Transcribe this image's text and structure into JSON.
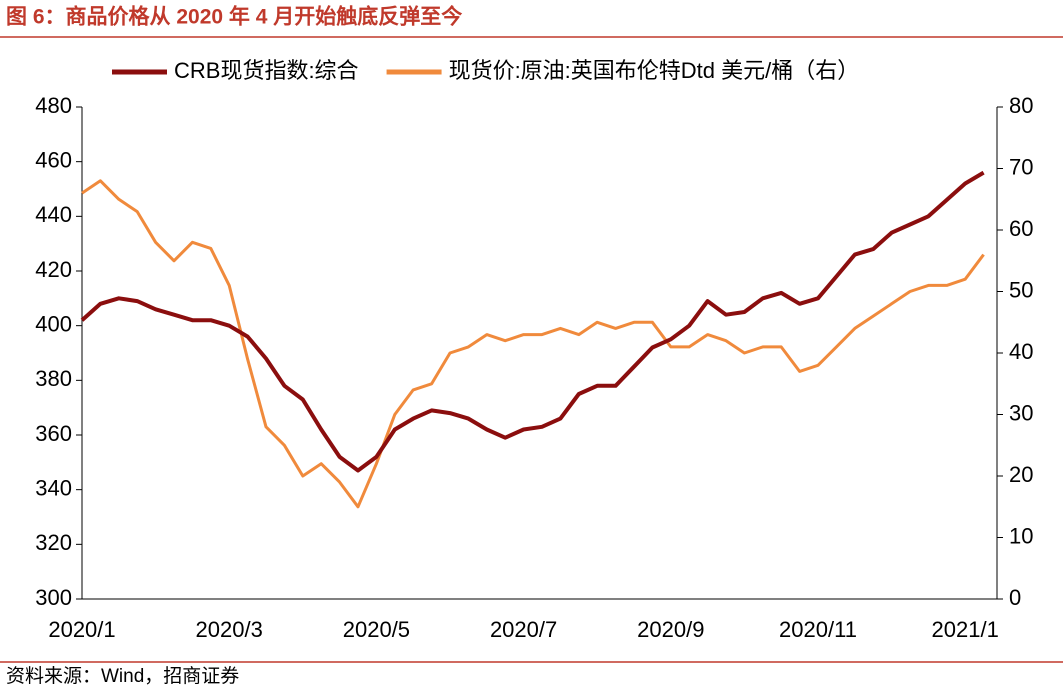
{
  "chart_data": {
    "type": "line",
    "title": "图 6：商品价格从 2020 年 4 月开始触底反弹至今",
    "source": "资料来源：Wind，招商证券",
    "categories": [
      "2020/1",
      null,
      null,
      null,
      null,
      null,
      null,
      null,
      "2020/3",
      null,
      null,
      null,
      null,
      null,
      null,
      null,
      "2020/5",
      null,
      null,
      null,
      null,
      null,
      null,
      null,
      "2020/7",
      null,
      null,
      null,
      null,
      null,
      null,
      null,
      "2020/9",
      null,
      null,
      null,
      null,
      null,
      null,
      null,
      "2020/11",
      null,
      null,
      null,
      null,
      null,
      null,
      null,
      "2021/1",
      null
    ],
    "series": [
      {
        "name": "CRB现货指数:综合",
        "color": "#8b0e0e",
        "values": [
          402,
          408,
          410,
          409,
          406,
          404,
          402,
          402,
          400,
          396,
          388,
          378,
          373,
          362,
          352,
          347,
          352,
          362,
          366,
          369,
          368,
          366,
          362,
          359,
          362,
          363,
          366,
          375,
          378,
          378,
          385,
          392,
          395,
          400,
          409,
          404,
          405,
          410,
          412,
          408,
          410,
          418,
          426,
          428,
          434,
          437,
          440,
          446,
          452,
          456
        ]
      },
      {
        "name": "现货价:原油:英国布伦特Dtd 美元/桶（右）",
        "color": "#f08a3c",
        "axis": "y2",
        "values": [
          66,
          68,
          65,
          63,
          58,
          55,
          58,
          57,
          51,
          39,
          28,
          25,
          20,
          22,
          19,
          15,
          22,
          30,
          34,
          35,
          40,
          41,
          43,
          42,
          43,
          43,
          44,
          43,
          45,
          44,
          45,
          45,
          41,
          41,
          43,
          42,
          40,
          41,
          41,
          37,
          38,
          41,
          44,
          46,
          48,
          50,
          51,
          51,
          52,
          56
        ]
      }
    ],
    "ylim": [
      300,
      480
    ],
    "yticks": [
      300,
      320,
      340,
      360,
      380,
      400,
      420,
      440,
      460,
      480
    ],
    "y2lim": [
      0,
      80
    ],
    "y2ticks": [
      0,
      10,
      20,
      30,
      40,
      50,
      60,
      70,
      80
    ],
    "legend": "top"
  }
}
